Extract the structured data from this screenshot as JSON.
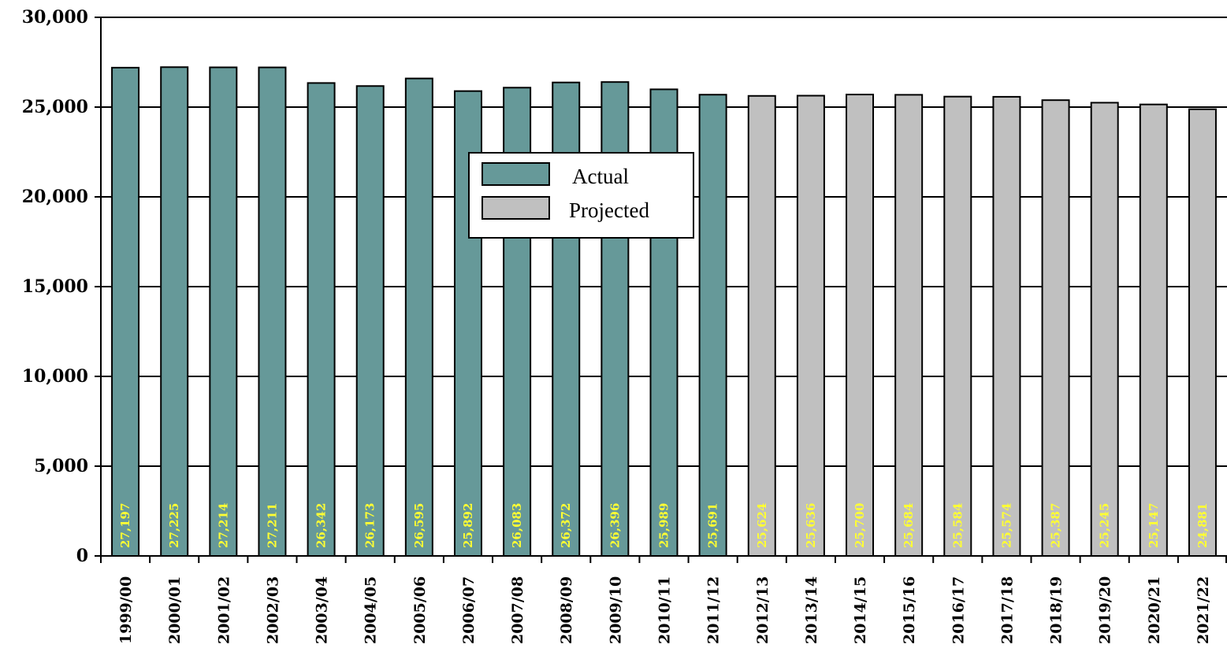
{
  "chart_data": {
    "type": "bar",
    "title": "",
    "xlabel": "",
    "ylabel": "",
    "ylim": [
      0,
      30000
    ],
    "yticks": [
      0,
      5000,
      10000,
      15000,
      20000,
      25000,
      30000
    ],
    "ytick_labels": [
      "0",
      "5,000",
      "10,000",
      "15,000",
      "20,000",
      "25,000",
      "30,000"
    ],
    "grid": "horizontal",
    "legend_position": "center-top",
    "categories": [
      "1999/00",
      "2000/01",
      "2001/02",
      "2002/03",
      "2003/04",
      "2004/05",
      "2005/06",
      "2006/07",
      "2007/08",
      "2008/09",
      "2009/10",
      "2010/11",
      "2011/12",
      "2012/13",
      "2013/14",
      "2014/15",
      "2015/16",
      "2016/17",
      "2017/18",
      "2018/19",
      "2019/20",
      "2020/21",
      "2021/22"
    ],
    "values": [
      27197,
      27225,
      27214,
      27211,
      26342,
      26173,
      26595,
      25892,
      26083,
      26372,
      26396,
      25989,
      25691,
      25624,
      25636,
      25700,
      25684,
      25584,
      25574,
      25387,
      25245,
      25147,
      24881
    ],
    "value_labels": [
      "27,197",
      "27,225",
      "27,214",
      "27,211",
      "26,342",
      "26,173",
      "26,595",
      "25,892",
      "26,083",
      "26,372",
      "26,396",
      "25,989",
      "25,691",
      "25,624",
      "25,636",
      "25,700",
      "25,684",
      "25,584",
      "25,574",
      "25,387",
      "25,245",
      "25,147",
      "24,881"
    ],
    "series_type": [
      "Actual",
      "Actual",
      "Actual",
      "Actual",
      "Actual",
      "Actual",
      "Actual",
      "Actual",
      "Actual",
      "Actual",
      "Actual",
      "Actual",
      "Actual",
      "Projected",
      "Projected",
      "Projected",
      "Projected",
      "Projected",
      "Projected",
      "Projected",
      "Projected",
      "Projected",
      "Projected"
    ],
    "legend": [
      {
        "name": "Actual",
        "color": "#669999"
      },
      {
        "name": "Projected",
        "color": "#c0c0c0"
      }
    ],
    "data_label_color": "#ffff33"
  }
}
